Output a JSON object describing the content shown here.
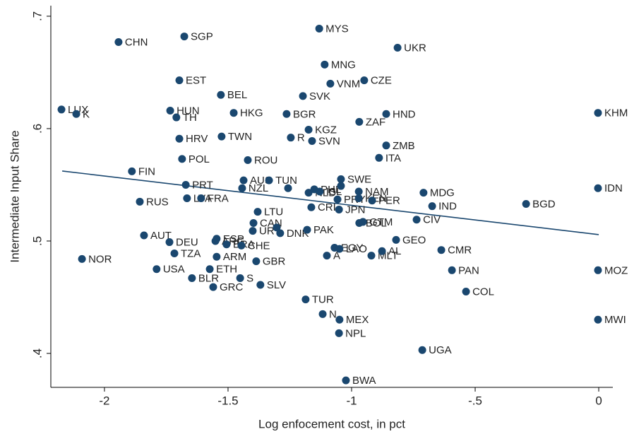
{
  "chart_data": {
    "type": "scatter",
    "x_label": "Log enfocement cost, in pct",
    "y_label": "Intermediate Input Share",
    "xlim": [
      -2.217,
      0.057
    ],
    "ylim": [
      0.3698,
      0.7094
    ],
    "xticks": [
      -2,
      -1.5,
      -1,
      {
        "value": -0.5,
        "label": "-.5"
      },
      0
    ],
    "yticks": [
      {
        "value": 0.4,
        "label": ".4"
      },
      {
        "value": 0.5,
        "label": ".5"
      },
      {
        "value": 0.6,
        "label": ".6"
      },
      {
        "value": 0.7,
        "label": ".7"
      }
    ],
    "series": [
      {
        "color": "#1a476f",
        "labels": [
          "CHN",
          "SGP",
          "MYS",
          "UKR",
          "MNG",
          "EST",
          "VNM",
          "CZE",
          "BEL",
          "SVK",
          "LUX",
          "K",
          "HUN",
          "TH",
          "HKG",
          "BGR",
          "HND",
          "KHM",
          "ZAF",
          "KGZ",
          "TWN",
          "HRV",
          "R",
          "SVN",
          "ZMB",
          "ITA",
          "POL",
          "ROU",
          "FIN",
          "AUS",
          "TUN",
          "SWE",
          "PRT",
          "NZL",
          null,
          "NLD",
          "PHL",
          "ISL",
          "PRY",
          null,
          "NAM",
          "KEN",
          "PER",
          "LVA",
          "FRA",
          "RUS",
          "MDG",
          "BGD",
          "IDN",
          "IND",
          "CRI",
          "JPN",
          "LTU",
          "CIV",
          "CAN",
          "BOL",
          "GTM",
          "URY",
          null,
          "DNK",
          "PAK",
          "AUT",
          "GEO",
          "DEU",
          "ESP",
          "ARG",
          "BRA",
          "CHE",
          "CMR",
          "EGY",
          "LAO",
          "A",
          "MLT",
          "AL",
          "NOR",
          "TZA",
          "ARM",
          "GBR",
          "USA",
          "ETH",
          "PAN",
          "MOZ",
          "BLR",
          "S",
          "GRC",
          "SLV",
          "COL",
          "TUR",
          "N",
          "MEX",
          "MWI",
          "NPL",
          "UGA",
          "BWA"
        ],
        "x": [
          -1.943,
          -1.677,
          -1.131,
          -0.814,
          -1.109,
          -1.697,
          -1.086,
          -0.949,
          -1.529,
          -1.197,
          -2.174,
          -2.114,
          -1.734,
          -1.709,
          -1.477,
          -1.263,
          -0.86,
          -0.003,
          -0.969,
          -1.174,
          -1.526,
          -1.697,
          -1.246,
          -1.16,
          -0.86,
          -0.889,
          -1.686,
          -1.42,
          -1.889,
          -1.437,
          -1.334,
          -1.043,
          -1.671,
          -1.443,
          -1.257,
          -1.174,
          -1.151,
          -1.129,
          -1.057,
          -1.043,
          -0.971,
          -0.971,
          -0.917,
          -1.666,
          -1.609,
          -1.857,
          -0.709,
          -0.294,
          -0.003,
          -0.674,
          -1.163,
          -1.051,
          -1.38,
          -0.737,
          -1.397,
          -0.969,
          -0.954,
          -1.4,
          -1.303,
          -1.289,
          -1.18,
          -1.84,
          -0.82,
          -1.737,
          -1.546,
          -1.551,
          -1.506,
          -1.446,
          -0.637,
          -1.069,
          -1.049,
          -1.1,
          -0.92,
          -0.877,
          -2.091,
          -1.717,
          -1.546,
          -1.386,
          -1.789,
          -1.574,
          -0.594,
          -0.003,
          -1.646,
          -1.451,
          -1.56,
          -1.369,
          -0.537,
          -1.186,
          -1.117,
          -1.049,
          -0.003,
          -1.051,
          -0.714,
          -1.023
        ],
        "values": [
          0.677,
          0.682,
          0.689,
          0.672,
          0.657,
          0.643,
          0.64,
          0.643,
          0.63,
          0.629,
          0.617,
          0.613,
          0.616,
          0.61,
          0.614,
          0.613,
          0.613,
          0.614,
          0.606,
          0.599,
          0.593,
          0.591,
          0.592,
          0.589,
          0.585,
          0.574,
          0.573,
          0.572,
          0.562,
          0.554,
          0.554,
          0.555,
          0.55,
          0.547,
          0.547,
          0.543,
          0.546,
          0.544,
          0.537,
          0.549,
          0.544,
          0.538,
          0.536,
          0.538,
          0.538,
          0.535,
          0.543,
          0.533,
          0.547,
          0.531,
          0.53,
          0.528,
          0.526,
          0.519,
          0.516,
          0.516,
          0.517,
          0.509,
          0.512,
          0.507,
          0.51,
          0.505,
          0.501,
          0.499,
          0.502,
          0.5,
          0.497,
          0.496,
          0.492,
          0.494,
          0.493,
          0.487,
          0.487,
          0.491,
          0.484,
          0.489,
          0.486,
          0.482,
          0.475,
          0.475,
          0.474,
          0.474,
          0.467,
          0.467,
          0.459,
          0.461,
          0.455,
          0.448,
          0.435,
          0.43,
          0.43,
          0.418,
          0.403,
          0.376
        ]
      }
    ],
    "trend": {
      "color": "#1a476f",
      "x": [
        -2.171,
        0
      ],
      "values": [
        0.5623,
        0.5057
      ]
    }
  }
}
